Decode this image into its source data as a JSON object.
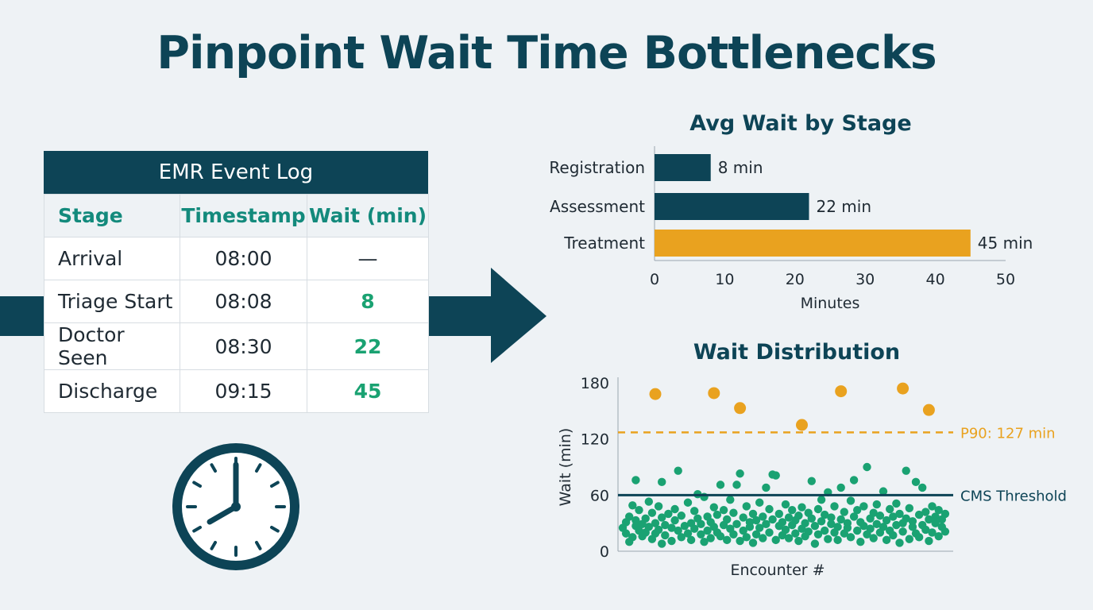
{
  "title": "Pinpoint Wait Time Bottlenecks",
  "event_log": {
    "title": "EMR Event Log",
    "headers": [
      "Stage",
      "Timestamp",
      "Wait (min)"
    ],
    "rows": [
      {
        "stage": "Arrival",
        "timestamp": "08:00",
        "wait": "—"
      },
      {
        "stage": "Triage Start",
        "timestamp": "08:08",
        "wait": "8"
      },
      {
        "stage": "Doctor Seen",
        "timestamp": "08:30",
        "wait": "22"
      },
      {
        "stage": "Discharge",
        "timestamp": "09:15",
        "wait": "45"
      }
    ]
  },
  "icons": {
    "arrow": "right-arrow-icon",
    "clock": "clock-icon"
  },
  "colors": {
    "primary": "#0d4456",
    "accent": "#e9a21f",
    "green": "#1aa272",
    "header_text": "#138a7c"
  },
  "chart_data": [
    {
      "type": "bar",
      "orientation": "horizontal",
      "title": "Avg Wait by Stage",
      "categories": [
        "Registration",
        "Assessment",
        "Treatment"
      ],
      "values": [
        8,
        22,
        45
      ],
      "value_labels": [
        "8 min",
        "22 min",
        "45 min"
      ],
      "xlabel": "Minutes",
      "xlim": [
        0,
        50
      ],
      "xticks": [
        0,
        10,
        20,
        30,
        40,
        50
      ],
      "bar_colors": [
        "#0d4456",
        "#0d4456",
        "#e9a21f"
      ]
    },
    {
      "type": "scatter",
      "title": "Wait Distribution",
      "xlabel": "Encounter #",
      "ylabel": "Wait (min)",
      "ylim": [
        0,
        180
      ],
      "yticks": [
        0,
        60,
        120,
        180
      ],
      "reference_lines": [
        {
          "label": "P90: 127 min",
          "value": 127,
          "style": "dashed",
          "color": "#e9a21f"
        },
        {
          "label": "CMS Threshold",
          "value": 60,
          "style": "solid",
          "color": "#0d4456"
        }
      ],
      "outliers": [
        {
          "x": 10,
          "y": 168
        },
        {
          "x": 28,
          "y": 169
        },
        {
          "x": 36,
          "y": 153
        },
        {
          "x": 55,
          "y": 135
        },
        {
          "x": 67,
          "y": 171
        },
        {
          "x": 86,
          "y": 174
        },
        {
          "x": 94,
          "y": 151
        }
      ],
      "points": [
        {
          "x": 0,
          "y": 25
        },
        {
          "x": 1,
          "y": 19
        },
        {
          "x": 1,
          "y": 31
        },
        {
          "x": 2,
          "y": 10
        },
        {
          "x": 2,
          "y": 37
        },
        {
          "x": 3,
          "y": 15
        },
        {
          "x": 3,
          "y": 49
        },
        {
          "x": 4,
          "y": 27
        },
        {
          "x": 4,
          "y": 33
        },
        {
          "x": 4,
          "y": 76
        },
        {
          "x": 5,
          "y": 22
        },
        {
          "x": 5,
          "y": 44
        },
        {
          "x": 6,
          "y": 16
        },
        {
          "x": 6,
          "y": 29
        },
        {
          "x": 7,
          "y": 35
        },
        {
          "x": 7,
          "y": 20
        },
        {
          "x": 8,
          "y": 26
        },
        {
          "x": 8,
          "y": 53
        },
        {
          "x": 9,
          "y": 13
        },
        {
          "x": 9,
          "y": 41
        },
        {
          "x": 10,
          "y": 30
        },
        {
          "x": 10,
          "y": 19
        },
        {
          "x": 11,
          "y": 23
        },
        {
          "x": 11,
          "y": 48
        },
        {
          "x": 12,
          "y": 36
        },
        {
          "x": 12,
          "y": 8
        },
        {
          "x": 12,
          "y": 74
        },
        {
          "x": 13,
          "y": 28
        },
        {
          "x": 13,
          "y": 17
        },
        {
          "x": 14,
          "y": 40
        },
        {
          "x": 15,
          "y": 11
        },
        {
          "x": 15,
          "y": 25
        },
        {
          "x": 16,
          "y": 33
        },
        {
          "x": 16,
          "y": 45
        },
        {
          "x": 17,
          "y": 22
        },
        {
          "x": 17,
          "y": 86
        },
        {
          "x": 18,
          "y": 15
        },
        {
          "x": 18,
          "y": 38
        },
        {
          "x": 19,
          "y": 27
        },
        {
          "x": 20,
          "y": 52
        },
        {
          "x": 20,
          "y": 19
        },
        {
          "x": 21,
          "y": 30
        },
        {
          "x": 21,
          "y": 12
        },
        {
          "x": 22,
          "y": 43
        },
        {
          "x": 22,
          "y": 24
        },
        {
          "x": 23,
          "y": 35
        },
        {
          "x": 23,
          "y": 61
        },
        {
          "x": 24,
          "y": 18
        },
        {
          "x": 24,
          "y": 29
        },
        {
          "x": 25,
          "y": 58
        },
        {
          "x": 25,
          "y": 10
        },
        {
          "x": 26,
          "y": 37
        },
        {
          "x": 26,
          "y": 22
        },
        {
          "x": 27,
          "y": 31
        },
        {
          "x": 27,
          "y": 14
        },
        {
          "x": 28,
          "y": 47
        },
        {
          "x": 28,
          "y": 26
        },
        {
          "x": 29,
          "y": 20
        },
        {
          "x": 29,
          "y": 39
        },
        {
          "x": 30,
          "y": 71
        },
        {
          "x": 30,
          "y": 16
        },
        {
          "x": 31,
          "y": 28
        },
        {
          "x": 31,
          "y": 44
        },
        {
          "x": 32,
          "y": 12
        },
        {
          "x": 32,
          "y": 34
        },
        {
          "x": 33,
          "y": 24
        },
        {
          "x": 33,
          "y": 55
        },
        {
          "x": 34,
          "y": 18
        },
        {
          "x": 34,
          "y": 41
        },
        {
          "x": 35,
          "y": 71
        },
        {
          "x": 35,
          "y": 29
        },
        {
          "x": 36,
          "y": 83
        },
        {
          "x": 36,
          "y": 11
        },
        {
          "x": 37,
          "y": 36
        },
        {
          "x": 37,
          "y": 22
        },
        {
          "x": 38,
          "y": 48
        },
        {
          "x": 38,
          "y": 15
        },
        {
          "x": 39,
          "y": 31
        },
        {
          "x": 39,
          "y": 26
        },
        {
          "x": 40,
          "y": 40
        },
        {
          "x": 40,
          "y": 9
        },
        {
          "x": 41,
          "y": 33
        },
        {
          "x": 41,
          "y": 18
        },
        {
          "x": 42,
          "y": 52
        },
        {
          "x": 42,
          "y": 25
        },
        {
          "x": 43,
          "y": 14
        },
        {
          "x": 43,
          "y": 37
        },
        {
          "x": 44,
          "y": 68
        },
        {
          "x": 44,
          "y": 29
        },
        {
          "x": 45,
          "y": 20
        },
        {
          "x": 45,
          "y": 45
        },
        {
          "x": 46,
          "y": 82
        },
        {
          "x": 46,
          "y": 34
        },
        {
          "x": 47,
          "y": 81
        },
        {
          "x": 47,
          "y": 12
        },
        {
          "x": 48,
          "y": 27
        },
        {
          "x": 48,
          "y": 40
        },
        {
          "x": 49,
          "y": 17
        },
        {
          "x": 49,
          "y": 31
        },
        {
          "x": 50,
          "y": 50
        },
        {
          "x": 50,
          "y": 23
        },
        {
          "x": 51,
          "y": 36
        },
        {
          "x": 51,
          "y": 14
        },
        {
          "x": 52,
          "y": 44
        },
        {
          "x": 52,
          "y": 28
        },
        {
          "x": 53,
          "y": 19
        },
        {
          "x": 53,
          "y": 33
        },
        {
          "x": 54,
          "y": 11
        },
        {
          "x": 54,
          "y": 38
        },
        {
          "x": 55,
          "y": 24
        },
        {
          "x": 55,
          "y": 47
        },
        {
          "x": 56,
          "y": 16
        },
        {
          "x": 56,
          "y": 30
        },
        {
          "x": 57,
          "y": 41
        },
        {
          "x": 57,
          "y": 21
        },
        {
          "x": 58,
          "y": 75
        },
        {
          "x": 58,
          "y": 35
        },
        {
          "x": 59,
          "y": 8
        },
        {
          "x": 59,
          "y": 27
        },
        {
          "x": 60,
          "y": 45
        },
        {
          "x": 60,
          "y": 18
        },
        {
          "x": 61,
          "y": 32
        },
        {
          "x": 61,
          "y": 55
        },
        {
          "x": 62,
          "y": 22
        },
        {
          "x": 62,
          "y": 39
        },
        {
          "x": 63,
          "y": 13
        },
        {
          "x": 63,
          "y": 63
        },
        {
          "x": 64,
          "y": 29
        },
        {
          "x": 64,
          "y": 36
        },
        {
          "x": 65,
          "y": 20
        },
        {
          "x": 65,
          "y": 48
        },
        {
          "x": 66,
          "y": 26
        },
        {
          "x": 66,
          "y": 12
        },
        {
          "x": 67,
          "y": 34
        },
        {
          "x": 67,
          "y": 68
        },
        {
          "x": 68,
          "y": 42
        },
        {
          "x": 68,
          "y": 19
        },
        {
          "x": 69,
          "y": 30
        },
        {
          "x": 69,
          "y": 25
        },
        {
          "x": 70,
          "y": 54
        },
        {
          "x": 70,
          "y": 15
        },
        {
          "x": 71,
          "y": 37
        },
        {
          "x": 71,
          "y": 76
        },
        {
          "x": 72,
          "y": 22
        },
        {
          "x": 72,
          "y": 44
        },
        {
          "x": 73,
          "y": 10
        },
        {
          "x": 73,
          "y": 31
        },
        {
          "x": 74,
          "y": 27
        },
        {
          "x": 74,
          "y": 48
        },
        {
          "x": 75,
          "y": 18
        },
        {
          "x": 75,
          "y": 90
        },
        {
          "x": 76,
          "y": 35
        },
        {
          "x": 76,
          "y": 24
        },
        {
          "x": 77,
          "y": 41
        },
        {
          "x": 77,
          "y": 14
        },
        {
          "x": 78,
          "y": 29
        },
        {
          "x": 78,
          "y": 50
        },
        {
          "x": 79,
          "y": 20
        },
        {
          "x": 79,
          "y": 38
        },
        {
          "x": 80,
          "y": 64
        },
        {
          "x": 80,
          "y": 26
        },
        {
          "x": 81,
          "y": 33
        },
        {
          "x": 81,
          "y": 12
        },
        {
          "x": 82,
          "y": 45
        },
        {
          "x": 82,
          "y": 22
        },
        {
          "x": 83,
          "y": 17
        },
        {
          "x": 83,
          "y": 37
        },
        {
          "x": 84,
          "y": 28
        },
        {
          "x": 84,
          "y": 51
        },
        {
          "x": 85,
          "y": 9
        },
        {
          "x": 85,
          "y": 40
        },
        {
          "x": 86,
          "y": 30
        },
        {
          "x": 86,
          "y": 21
        },
        {
          "x": 87,
          "y": 86
        },
        {
          "x": 87,
          "y": 35
        },
        {
          "x": 88,
          "y": 13
        },
        {
          "x": 88,
          "y": 46
        },
        {
          "x": 89,
          "y": 26
        },
        {
          "x": 89,
          "y": 32
        },
        {
          "x": 90,
          "y": 74
        },
        {
          "x": 90,
          "y": 19
        },
        {
          "x": 91,
          "y": 39
        },
        {
          "x": 91,
          "y": 15
        },
        {
          "x": 92,
          "y": 28
        },
        {
          "x": 92,
          "y": 68
        },
        {
          "x": 93,
          "y": 42
        },
        {
          "x": 93,
          "y": 23
        },
        {
          "x": 94,
          "y": 34
        },
        {
          "x": 94,
          "y": 11
        },
        {
          "x": 95,
          "y": 48
        },
        {
          "x": 95,
          "y": 20
        },
        {
          "x": 96,
          "y": 30
        },
        {
          "x": 96,
          "y": 37
        },
        {
          "x": 97,
          "y": 16
        },
        {
          "x": 97,
          "y": 44
        },
        {
          "x": 98,
          "y": 26
        },
        {
          "x": 98,
          "y": 34
        },
        {
          "x": 99,
          "y": 21
        },
        {
          "x": 99,
          "y": 40
        }
      ]
    }
  ]
}
